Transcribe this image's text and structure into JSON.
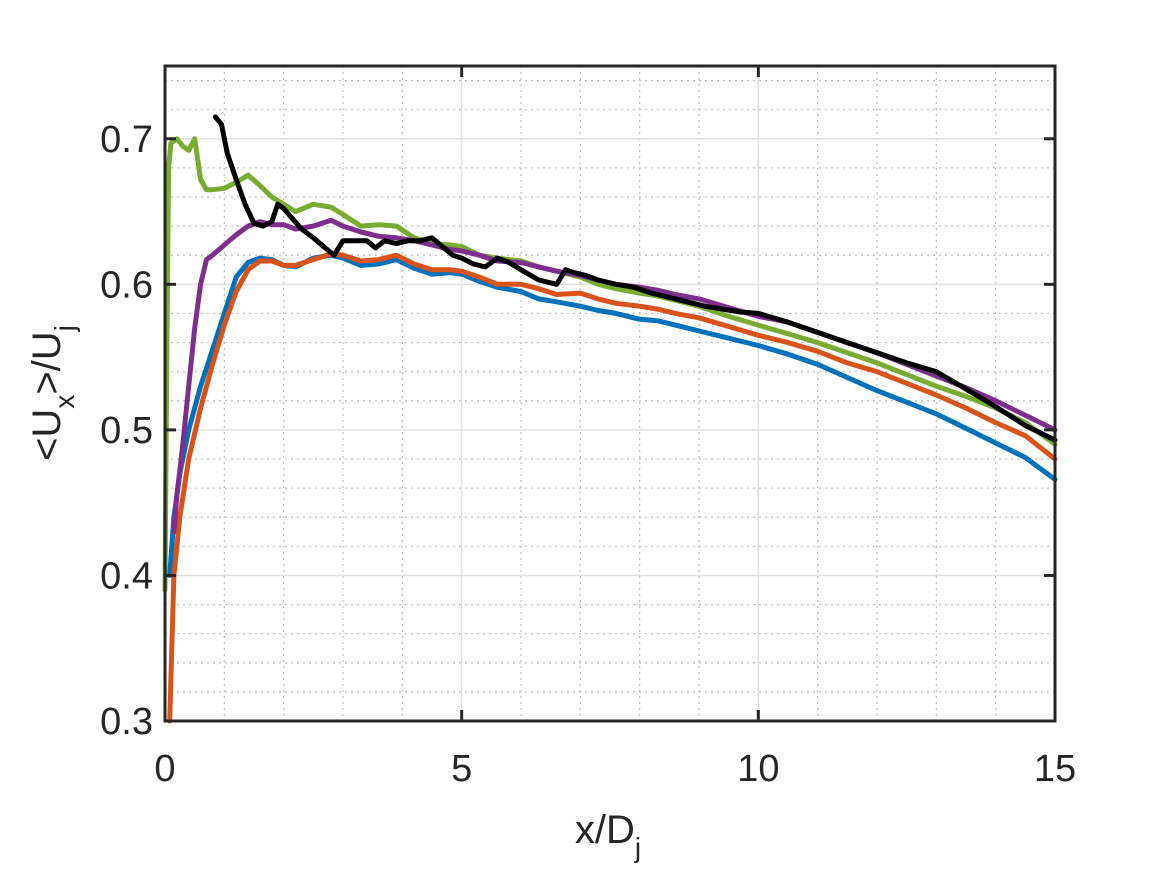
{
  "chart_data": {
    "type": "line",
    "title": "",
    "xlabel": {
      "main": "x/D",
      "sub": "j"
    },
    "ylabel": {
      "p1": "<U",
      "sub1": "x",
      "p2": ">/U",
      "sub2": "j"
    },
    "xlim": [
      0,
      15
    ],
    "ylim": [
      0.3,
      0.75
    ],
    "xticks": [
      0,
      5,
      10,
      15
    ],
    "xtick_labels": [
      "0",
      "5",
      "10",
      "15"
    ],
    "yticks": [
      0.3,
      0.4,
      0.5,
      0.6,
      0.7
    ],
    "ytick_labels": [
      "0.3",
      "0.4",
      "0.5",
      "0.6",
      "0.7"
    ],
    "grid": true,
    "minor_grid": true,
    "legend": null,
    "series": [
      {
        "color": "#0072BD",
        "x": [
          0.08,
          0.15,
          0.25,
          0.4,
          0.6,
          0.8,
          1.0,
          1.2,
          1.4,
          1.6,
          1.8,
          2.0,
          2.2,
          2.5,
          2.8,
          3.0,
          3.3,
          3.6,
          3.9,
          4.2,
          4.5,
          4.8,
          5.0,
          5.3,
          5.6,
          6.0,
          6.3,
          6.6,
          7.0,
          7.3,
          7.6,
          8.0,
          8.3,
          8.6,
          9.0,
          9.5,
          10.0,
          10.5,
          11.0,
          11.5,
          12.0,
          12.5,
          13.0,
          13.5,
          14.0,
          14.5,
          15.0
        ],
        "y": [
          0.4,
          0.44,
          0.47,
          0.5,
          0.53,
          0.555,
          0.58,
          0.605,
          0.615,
          0.618,
          0.617,
          0.613,
          0.612,
          0.618,
          0.62,
          0.618,
          0.613,
          0.614,
          0.617,
          0.611,
          0.607,
          0.608,
          0.607,
          0.602,
          0.598,
          0.595,
          0.59,
          0.588,
          0.585,
          0.582,
          0.58,
          0.576,
          0.575,
          0.572,
          0.568,
          0.563,
          0.558,
          0.552,
          0.545,
          0.536,
          0.527,
          0.519,
          0.511,
          0.501,
          0.491,
          0.481,
          0.466
        ]
      },
      {
        "color": "#D95319",
        "x": [
          0.08,
          0.15,
          0.25,
          0.4,
          0.6,
          0.8,
          1.0,
          1.2,
          1.4,
          1.6,
          1.8,
          2.0,
          2.2,
          2.5,
          2.8,
          3.0,
          3.3,
          3.6,
          3.9,
          4.2,
          4.5,
          4.8,
          5.0,
          5.3,
          5.6,
          6.0,
          6.3,
          6.6,
          7.0,
          7.3,
          7.6,
          8.0,
          8.3,
          8.6,
          9.0,
          9.5,
          10.0,
          10.5,
          11.0,
          11.5,
          12.0,
          12.5,
          13.0,
          13.5,
          14.0,
          14.5,
          15.0
        ],
        "y": [
          0.3,
          0.4,
          0.44,
          0.48,
          0.515,
          0.545,
          0.572,
          0.595,
          0.61,
          0.616,
          0.616,
          0.613,
          0.613,
          0.617,
          0.621,
          0.62,
          0.616,
          0.617,
          0.62,
          0.614,
          0.61,
          0.61,
          0.609,
          0.605,
          0.6,
          0.6,
          0.597,
          0.593,
          0.594,
          0.59,
          0.587,
          0.585,
          0.583,
          0.58,
          0.577,
          0.571,
          0.565,
          0.56,
          0.554,
          0.546,
          0.54,
          0.532,
          0.524,
          0.515,
          0.505,
          0.496,
          0.48
        ]
      },
      {
        "color": "#77AC30",
        "x": [
          0.0,
          0.03,
          0.06,
          0.1,
          0.2,
          0.3,
          0.4,
          0.5,
          0.6,
          0.7,
          0.8,
          1.0,
          1.2,
          1.4,
          1.6,
          1.8,
          2.0,
          2.2,
          2.5,
          2.8,
          3.0,
          3.3,
          3.6,
          3.9,
          4.2,
          4.5,
          4.8,
          5.0,
          5.3,
          5.6,
          6.0,
          6.3,
          6.6,
          7.0,
          7.3,
          7.6,
          8.0,
          8.3,
          8.6,
          9.0,
          9.5,
          10.0,
          10.5,
          11.0,
          11.5,
          12.0,
          12.5,
          13.0,
          13.5,
          14.0,
          14.5,
          15.0
        ],
        "y": [
          0.39,
          0.55,
          0.68,
          0.697,
          0.7,
          0.695,
          0.692,
          0.7,
          0.672,
          0.665,
          0.665,
          0.666,
          0.67,
          0.675,
          0.668,
          0.66,
          0.655,
          0.65,
          0.655,
          0.653,
          0.648,
          0.64,
          0.641,
          0.64,
          0.632,
          0.628,
          0.627,
          0.626,
          0.62,
          0.618,
          0.616,
          0.612,
          0.609,
          0.605,
          0.6,
          0.597,
          0.594,
          0.592,
          0.589,
          0.585,
          0.578,
          0.572,
          0.566,
          0.56,
          0.553,
          0.546,
          0.538,
          0.53,
          0.523,
          0.515,
          0.505,
          0.49
        ]
      },
      {
        "color": "#7E2F8E",
        "x": [
          0.15,
          0.2,
          0.3,
          0.4,
          0.5,
          0.6,
          0.7,
          0.8,
          1.0,
          1.2,
          1.4,
          1.6,
          1.8,
          2.0,
          2.2,
          2.5,
          2.8,
          3.0,
          3.3,
          3.6,
          3.9,
          4.2,
          4.5,
          4.8,
          5.0,
          5.3,
          5.6,
          6.0,
          6.3,
          6.6,
          7.0,
          7.3,
          7.6,
          8.0,
          8.3,
          8.6,
          9.0,
          9.5,
          10.0,
          10.5,
          11.0,
          11.5,
          12.0,
          12.5,
          13.0,
          13.5,
          14.0,
          14.5,
          15.0
        ],
        "y": [
          0.43,
          0.455,
          0.49,
          0.53,
          0.57,
          0.6,
          0.617,
          0.62,
          0.627,
          0.634,
          0.64,
          0.643,
          0.641,
          0.641,
          0.638,
          0.64,
          0.644,
          0.64,
          0.636,
          0.633,
          0.632,
          0.63,
          0.627,
          0.624,
          0.623,
          0.62,
          0.616,
          0.615,
          0.612,
          0.609,
          0.606,
          0.603,
          0.6,
          0.598,
          0.596,
          0.593,
          0.59,
          0.584,
          0.578,
          0.574,
          0.567,
          0.56,
          0.553,
          0.545,
          0.537,
          0.529,
          0.52,
          0.51,
          0.5
        ]
      },
      {
        "color": "#000000",
        "x": [
          0.85,
          0.95,
          1.05,
          1.2,
          1.35,
          1.5,
          1.65,
          1.8,
          1.9,
          2.0,
          2.15,
          2.3,
          2.5,
          2.7,
          2.85,
          3.0,
          3.2,
          3.4,
          3.55,
          3.7,
          3.9,
          4.1,
          4.3,
          4.5,
          4.7,
          4.85,
          5.0,
          5.2,
          5.4,
          5.6,
          5.8,
          6.0,
          6.3,
          6.6,
          6.75,
          6.9,
          7.1,
          7.3,
          7.6,
          7.9,
          8.2,
          8.5,
          8.8,
          9.1,
          9.4,
          9.7,
          10.0,
          10.5,
          11.0,
          11.5,
          12.0,
          12.5,
          13.0,
          13.5,
          14.0,
          14.5,
          15.0
        ],
        "y": [
          0.715,
          0.71,
          0.69,
          0.672,
          0.655,
          0.642,
          0.64,
          0.643,
          0.655,
          0.652,
          0.645,
          0.638,
          0.632,
          0.625,
          0.62,
          0.63,
          0.63,
          0.63,
          0.625,
          0.63,
          0.628,
          0.63,
          0.63,
          0.632,
          0.625,
          0.62,
          0.618,
          0.614,
          0.612,
          0.618,
          0.615,
          0.61,
          0.603,
          0.6,
          0.61,
          0.608,
          0.606,
          0.603,
          0.6,
          0.598,
          0.594,
          0.591,
          0.588,
          0.585,
          0.583,
          0.581,
          0.58,
          0.574,
          0.567,
          0.56,
          0.553,
          0.546,
          0.54,
          0.528,
          0.516,
          0.503,
          0.493
        ]
      }
    ]
  }
}
